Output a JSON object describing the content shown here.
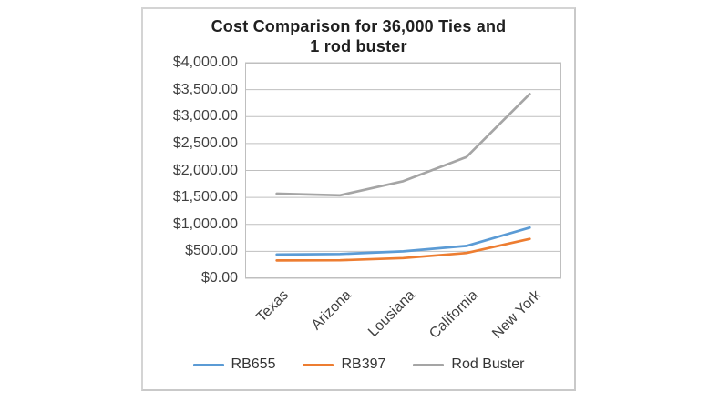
{
  "header": {
    "title": "Cost Comparison for 36,000 Ties and\n1 rod buster"
  },
  "chart_data": {
    "type": "line",
    "title": "Cost Comparison for 36,000 Ties and 1 rod buster",
    "categories": [
      "Texas",
      "Arizona",
      "Lousiana",
      "California",
      "New York"
    ],
    "series": [
      {
        "name": "RB655",
        "color": "#5b9bd5",
        "values": [
          440,
          450,
          500,
          600,
          940
        ]
      },
      {
        "name": "RB397",
        "color": "#ed7d31",
        "values": [
          330,
          335,
          375,
          470,
          730
        ]
      },
      {
        "name": "Rod Buster",
        "color": "#a5a5a5",
        "values": [
          1570,
          1540,
          1800,
          2250,
          3420
        ]
      }
    ],
    "xlabel": "",
    "ylabel": "",
    "ylim": [
      0,
      4000
    ],
    "ytick_step": 500,
    "ytick_labels": [
      "$0.00",
      "$500.00",
      "$1,000.00",
      "$1,500.00",
      "$2,000.00",
      "$2,500.00",
      "$3,000.00",
      "$3,500.00",
      "$4,000.00"
    ],
    "grid": true,
    "legend_position": "bottom",
    "colors": {
      "gridline": "#bfbfbf",
      "plot_border": "#bfbfbf",
      "axis_text": "#3f3f3f",
      "title_text": "#202020"
    }
  }
}
